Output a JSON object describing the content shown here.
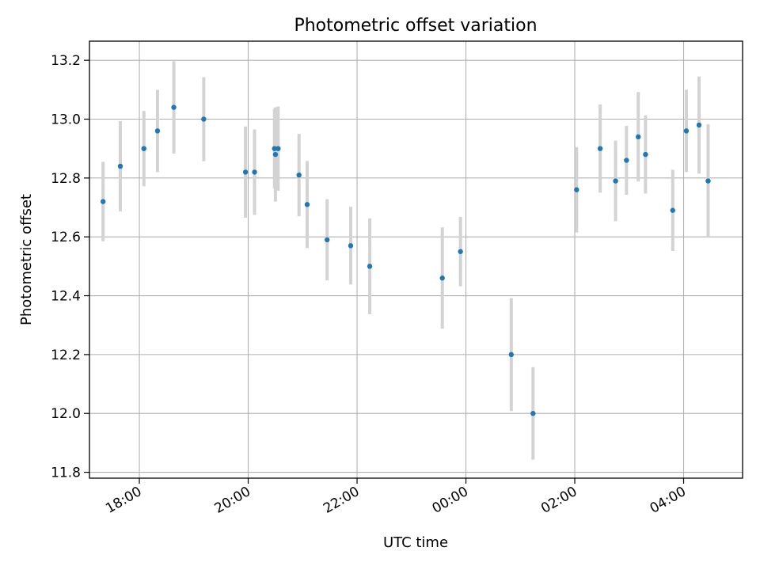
{
  "chart_data": {
    "type": "scatter",
    "title": "Photometric offset variation",
    "xlabel": "UTC time",
    "ylabel": "Photometric offset",
    "x_tick_labels": [
      "18:00",
      "20:00",
      "22:00",
      "00:00",
      "02:00",
      "04:00"
    ],
    "y_ticks": [
      11.8,
      12.0,
      12.2,
      12.4,
      12.6,
      12.8,
      13.0,
      13.2
    ],
    "ylim": [
      11.78,
      13.265
    ],
    "xlim": [
      "17:05",
      "05:05"
    ],
    "grid": true,
    "colors": {
      "point": "#1f77b4",
      "errorbar": "#d3d3d3",
      "grid": "#b0b0b0"
    },
    "series": [
      {
        "points": [
          {
            "x": "17:20",
            "y": 12.72,
            "err": 0.135
          },
          {
            "x": "17:39",
            "y": 12.84,
            "err": 0.153
          },
          {
            "x": "18:05",
            "y": 12.9,
            "err": 0.128
          },
          {
            "x": "18:20",
            "y": 12.96,
            "err": 0.14
          },
          {
            "x": "18:38",
            "y": 13.04,
            "err": 0.157
          },
          {
            "x": "19:11",
            "y": 13.0,
            "err": 0.143
          },
          {
            "x": "19:57",
            "y": 12.82,
            "err": 0.155
          },
          {
            "x": "20:07",
            "y": 12.82,
            "err": 0.145
          },
          {
            "x": "20:29",
            "y": 12.9,
            "err": 0.135
          },
          {
            "x": "20:30",
            "y": 12.88,
            "err": 0.16
          },
          {
            "x": "20:33",
            "y": 12.9,
            "err": 0.143
          },
          {
            "x": "20:56",
            "y": 12.81,
            "err": 0.14
          },
          {
            "x": "21:05",
            "y": 12.71,
            "err": 0.148
          },
          {
            "x": "21:27",
            "y": 12.59,
            "err": 0.138
          },
          {
            "x": "21:53",
            "y": 12.57,
            "err": 0.132
          },
          {
            "x": "22:14",
            "y": 12.5,
            "err": 0.163
          },
          {
            "x": "23:34",
            "y": 12.46,
            "err": 0.172
          },
          {
            "x": "23:54",
            "y": 12.55,
            "err": 0.118
          },
          {
            "x": "00:50",
            "y": 12.2,
            "err": 0.192
          },
          {
            "x": "01:14",
            "y": 12.0,
            "err": 0.157
          },
          {
            "x": "02:02",
            "y": 12.76,
            "err": 0.145
          },
          {
            "x": "02:28",
            "y": 12.9,
            "err": 0.15
          },
          {
            "x": "02:45",
            "y": 12.79,
            "err": 0.137
          },
          {
            "x": "02:57",
            "y": 12.86,
            "err": 0.117
          },
          {
            "x": "03:10",
            "y": 12.94,
            "err": 0.152
          },
          {
            "x": "03:18",
            "y": 12.88,
            "err": 0.133
          },
          {
            "x": "03:48",
            "y": 12.69,
            "err": 0.138
          },
          {
            "x": "04:03",
            "y": 12.96,
            "err": 0.14
          },
          {
            "x": "04:17",
            "y": 12.98,
            "err": 0.165
          },
          {
            "x": "04:27",
            "y": 12.79,
            "err": 0.193
          }
        ]
      }
    ]
  }
}
